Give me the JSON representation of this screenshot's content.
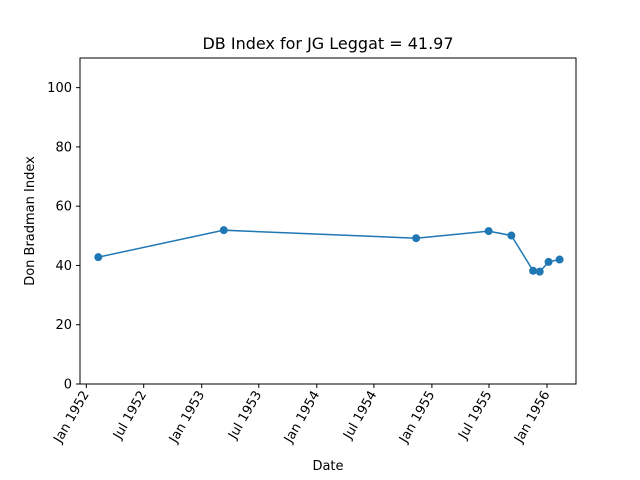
{
  "chart_data": {
    "type": "line",
    "title": "DB Index for JG Leggat = 41.97",
    "xlabel": "Date",
    "ylabel": "Don Bradman Index",
    "ylim": [
      0,
      110
    ],
    "xlim": [
      "1951-12-12",
      "1956-04-02"
    ],
    "y_ticks": [
      0,
      20,
      40,
      60,
      80,
      100
    ],
    "x_ticks": [
      {
        "date": "1952-01-01",
        "label": "Jan 1952"
      },
      {
        "date": "1952-07-01",
        "label": "Jul 1952"
      },
      {
        "date": "1953-01-01",
        "label": "Jan 1953"
      },
      {
        "date": "1953-07-01",
        "label": "Jul 1953"
      },
      {
        "date": "1954-01-01",
        "label": "Jan 1954"
      },
      {
        "date": "1954-07-01",
        "label": "Jul 1954"
      },
      {
        "date": "1955-01-01",
        "label": "Jan 1955"
      },
      {
        "date": "1955-07-01",
        "label": "Jul 1955"
      },
      {
        "date": "1956-01-01",
        "label": "Jan 1956"
      }
    ],
    "grid": false,
    "legend": "none",
    "series": [
      {
        "color": "#1f77b4",
        "points": [
          {
            "x": "1952-02-08",
            "y": 42.8
          },
          {
            "x": "1953-03-12",
            "y": 51.9
          },
          {
            "x": "1954-11-12",
            "y": 49.2
          },
          {
            "x": "1955-06-30",
            "y": 51.6
          },
          {
            "x": "1955-09-10",
            "y": 50.1
          },
          {
            "x": "1955-11-18",
            "y": 38.2
          },
          {
            "x": "1955-12-09",
            "y": 37.9
          },
          {
            "x": "1956-01-06",
            "y": 41.2
          },
          {
            "x": "1956-02-10",
            "y": 42.0
          }
        ]
      }
    ]
  }
}
